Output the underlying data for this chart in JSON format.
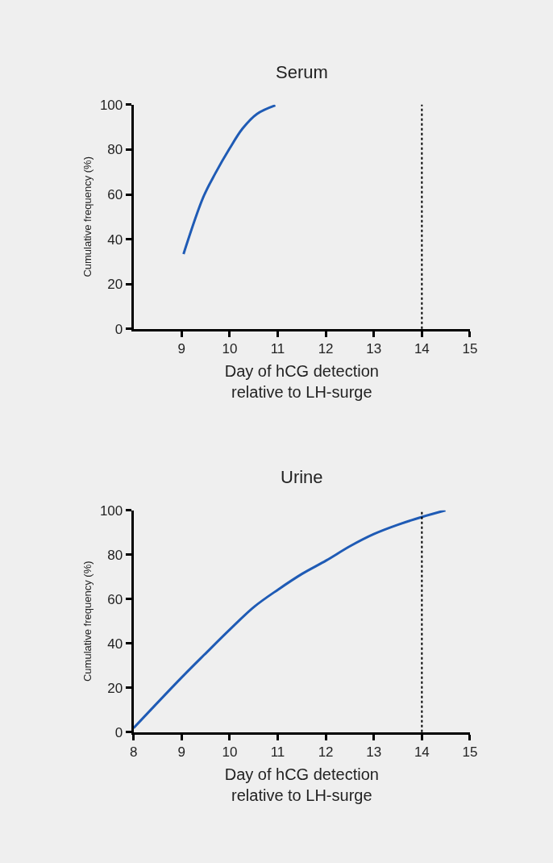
{
  "chart_data": [
    {
      "type": "line",
      "title": "Serum",
      "xlabel": "Day of hCG detection\nrelative to LH-surge",
      "ylabel": "Cumulative frequency (%)",
      "xlim": [
        8,
        15
      ],
      "xticks": [
        9,
        10,
        11,
        12,
        13,
        14,
        15
      ],
      "ylim": [
        0,
        100
      ],
      "yticks": [
        0,
        20,
        40,
        60,
        80,
        100
      ],
      "marker": "none",
      "line_style": "solid",
      "series": [
        {
          "color": "#1f5bb5",
          "x": [
            9.04,
            9.45,
            9.7,
            10.0,
            10.27,
            10.57,
            10.95
          ],
          "values": [
            33.4,
            58.7,
            69.3,
            80.5,
            89.4,
            95.9,
            99.7
          ]
        }
      ],
      "ref_lines": [
        {
          "axis": "x",
          "value": 14,
          "line_style": "dotted",
          "color": "#000000"
        }
      ]
    },
    {
      "type": "line",
      "title": "Urine",
      "xlabel": "Day of hCG detection\nrelative to LH-surge",
      "ylabel": "Cumulative frequency (%)",
      "xlim": [
        8,
        15
      ],
      "xticks": [
        8,
        9,
        10,
        11,
        12,
        13,
        14,
        15
      ],
      "ylim": [
        0,
        100
      ],
      "yticks": [
        0,
        20,
        40,
        60,
        80,
        100
      ],
      "marker": "none",
      "line_style": "solid",
      "series": [
        {
          "color": "#1f5bb5",
          "x": [
            8.0,
            8.99,
            9.51,
            10.01,
            10.51,
            11.01,
            11.51,
            12.01,
            12.51,
            13.0,
            13.5,
            14.0,
            14.49
          ],
          "values": [
            1.8,
            24.4,
            35.7,
            46.4,
            56.5,
            64.3,
            71.4,
            77.4,
            83.9,
            89.3,
            93.5,
            97.0,
            100
          ]
        }
      ],
      "ref_lines": [
        {
          "axis": "x",
          "value": 14,
          "line_style": "dotted",
          "color": "#000000"
        }
      ]
    }
  ]
}
